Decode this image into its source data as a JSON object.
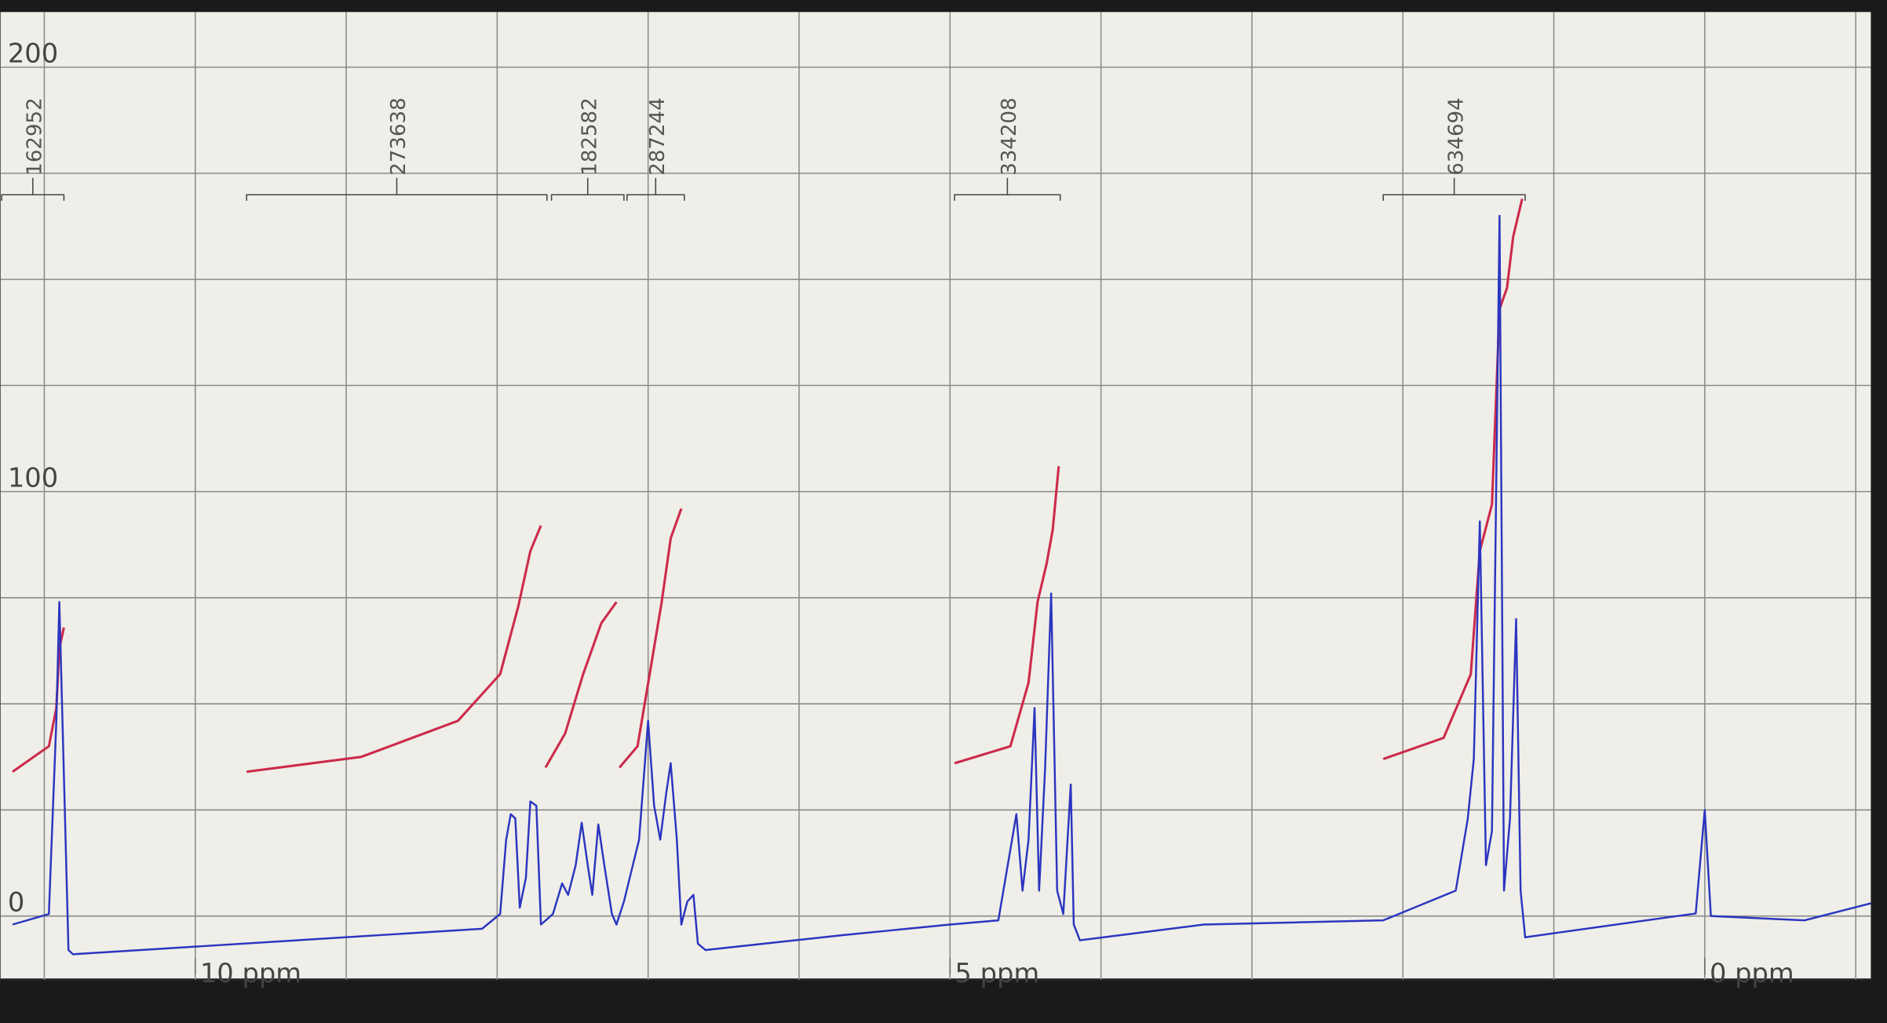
{
  "chart_data": {
    "type": "nmr",
    "xlim": [
      11.29,
      -1.1
    ],
    "ylim": [
      -15,
      213
    ],
    "xticks": [
      {
        "value": 10,
        "label": "10 ppm"
      },
      {
        "value": 5,
        "label": "5 ppm"
      },
      {
        "value": 0,
        "label": "0 ppm"
      }
    ],
    "yticks": [
      0,
      100,
      200
    ],
    "xgrid": [
      -1,
      0,
      1,
      2,
      3,
      4,
      5,
      6,
      7,
      8,
      9,
      10,
      11
    ],
    "ygrid": [
      0,
      25,
      50,
      75,
      100,
      125,
      150,
      175,
      200
    ],
    "grid": true,
    "series": [
      {
        "color": "#2b35c0",
        "x": [
          11.21,
          10.97,
          10.92,
          10.9,
          10.88,
          10.84,
          10.81,
          8.1,
          7.98,
          7.94,
          7.91,
          7.88,
          7.85,
          7.81,
          7.78,
          7.74,
          7.71,
          7.63,
          7.57,
          7.53,
          7.48,
          7.44,
          7.4,
          7.37,
          7.33,
          7.29,
          7.24,
          7.21,
          7.16,
          7.06,
          7.0,
          6.96,
          6.92,
          6.88,
          6.85,
          6.81,
          6.78,
          6.74,
          6.7,
          6.67,
          6.62,
          5.71,
          5.0,
          4.68,
          4.56,
          4.52,
          4.48,
          4.44,
          4.41,
          4.37,
          4.33,
          4.29,
          4.25,
          4.2,
          4.18,
          4.14,
          3.32,
          2.13,
          1.65,
          1.57,
          1.53,
          1.49,
          1.45,
          1.41,
          1.36,
          1.33,
          1.29,
          1.25,
          1.22,
          1.19,
          0.93,
          0.06,
          0.0,
          -0.04,
          -0.66,
          -1.1
        ],
        "y": [
          -2,
          0.5,
          46,
          74,
          46,
          -8,
          -9,
          -3,
          0.5,
          18,
          24,
          23,
          2,
          9,
          27,
          26,
          -2,
          0.5,
          7.7,
          5,
          12,
          22,
          12,
          5,
          21.6,
          12,
          0.5,
          -2,
          3.4,
          18,
          46,
          26,
          18,
          29,
          36,
          18,
          -2,
          3.4,
          5,
          -6.5,
          -8,
          -4.5,
          -2,
          -1,
          24,
          6,
          18,
          49,
          6,
          35,
          76,
          6,
          0.5,
          31,
          -2,
          -5.7,
          -2,
          -1,
          6,
          23,
          37,
          93,
          12,
          20,
          165,
          6,
          23,
          70,
          6,
          -5,
          -3.7,
          0.6,
          25,
          0,
          -1,
          3
        ]
      }
    ],
    "integral_color": "#cc2a4a",
    "integrals": [
      {
        "value": 162952,
        "from": 11.29,
        "to": 10.87,
        "x": [
          11.21,
          10.97,
          10.92,
          10.9,
          10.87
        ],
        "y": [
          34,
          40,
          49,
          63,
          68
        ]
      },
      {
        "value": 273638,
        "from": 9.66,
        "to": 7.67,
        "x": [
          9.66,
          8.9,
          8.26,
          7.98,
          7.86,
          7.78,
          7.71
        ],
        "y": [
          34,
          37.5,
          46,
          57,
          73,
          86,
          92
        ]
      },
      {
        "value": 182582,
        "from": 7.64,
        "to": 7.16,
        "x": [
          7.68,
          7.55,
          7.43,
          7.31,
          7.21
        ],
        "y": [
          35,
          43,
          57,
          69,
          74
        ]
      },
      {
        "value": 287244,
        "from": 7.14,
        "to": 6.76,
        "x": [
          7.19,
          7.07,
          6.99,
          6.91,
          6.85,
          6.78
        ],
        "y": [
          35,
          40,
          57,
          74,
          89,
          96
        ]
      },
      {
        "value": 334208,
        "from": 4.97,
        "to": 4.27,
        "x": [
          4.97,
          4.6,
          4.48,
          4.42,
          4.36,
          4.32,
          4.28
        ],
        "y": [
          36,
          40,
          55,
          74,
          83,
          91,
          106
        ]
      },
      {
        "value": 634694,
        "from": 2.13,
        "to": 1.19,
        "x": [
          2.13,
          1.73,
          1.55,
          1.49,
          1.41,
          1.36,
          1.31,
          1.27,
          1.21
        ],
        "y": [
          37,
          42,
          57,
          86,
          97,
          143,
          148,
          160,
          169
        ]
      }
    ]
  }
}
